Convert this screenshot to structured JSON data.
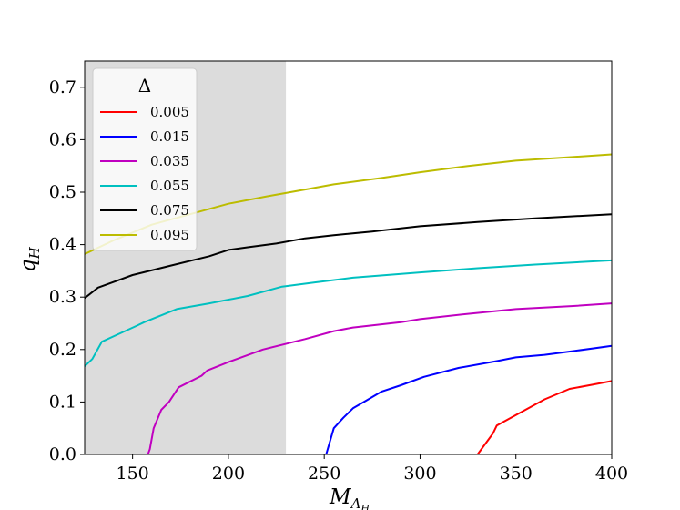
{
  "chart_data": {
    "type": "line",
    "title": "",
    "xlabel": "M",
    "xlabel_sub": "A",
    "xlabel_subsub": "H",
    "ylabel": "q",
    "ylabel_sub": "H",
    "xlim": [
      125,
      400
    ],
    "ylim": [
      0,
      0.75
    ],
    "xticks": [
      150,
      200,
      250,
      300,
      350,
      400
    ],
    "yticks": [
      0.0,
      0.1,
      0.2,
      0.3,
      0.4,
      0.5,
      0.6,
      0.7
    ],
    "xtick_labels": [
      "150",
      "200",
      "250",
      "300",
      "350",
      "400"
    ],
    "ytick_labels": [
      "0.0",
      "0.1",
      "0.2",
      "0.3",
      "0.4",
      "0.5",
      "0.6",
      "0.7"
    ],
    "shaded_region": {
      "x": [
        125,
        230
      ],
      "color": "#dcdcdc"
    },
    "grid": false,
    "legend": {
      "title": "Δ",
      "position": "top-left"
    },
    "series": [
      {
        "name": "0.005",
        "color": "#ff0000",
        "x": [
          330,
          338,
          340,
          350,
          365,
          378,
          390,
          400
        ],
        "y": [
          0.0,
          0.04,
          0.055,
          0.075,
          0.105,
          0.125,
          0.133,
          0.14
        ]
      },
      {
        "name": "0.015",
        "color": "#0000ff",
        "x": [
          251,
          255,
          260,
          265,
          272,
          280,
          290,
          302,
          320,
          340,
          350,
          365,
          380,
          400
        ],
        "y": [
          0.0,
          0.05,
          0.07,
          0.088,
          0.103,
          0.12,
          0.132,
          0.148,
          0.165,
          0.178,
          0.185,
          0.19,
          0.197,
          0.207
        ]
      },
      {
        "name": "0.035",
        "color": "#c000c0",
        "x": [
          158,
          159,
          161,
          165,
          169,
          174,
          186,
          189,
          200,
          218,
          240,
          255,
          265,
          290,
          300,
          325,
          350,
          380,
          400
        ],
        "y": [
          0.0,
          0.01,
          0.05,
          0.085,
          0.1,
          0.128,
          0.15,
          0.16,
          0.176,
          0.2,
          0.22,
          0.235,
          0.242,
          0.252,
          0.258,
          0.268,
          0.277,
          0.283,
          0.288
        ]
      },
      {
        "name": "0.055",
        "color": "#00c0c0",
        "x": [
          125,
          129,
          134,
          143,
          152,
          156,
          173,
          190,
          210,
          228,
          245,
          265,
          300,
          330,
          360,
          400
        ],
        "y": [
          0.168,
          0.182,
          0.215,
          0.23,
          0.245,
          0.252,
          0.277,
          0.288,
          0.302,
          0.32,
          0.328,
          0.337,
          0.347,
          0.355,
          0.362,
          0.37
        ]
      },
      {
        "name": "0.075",
        "color": "#000000",
        "x": [
          125,
          132,
          150,
          170,
          190,
          200,
          210,
          225,
          240,
          255,
          275,
          300,
          330,
          360,
          400
        ],
        "y": [
          0.298,
          0.318,
          0.342,
          0.36,
          0.378,
          0.39,
          0.395,
          0.402,
          0.412,
          0.418,
          0.425,
          0.435,
          0.443,
          0.45,
          0.458
        ]
      },
      {
        "name": "0.095",
        "color": "#bcbc00",
        "x": [
          125,
          140,
          160,
          180,
          200,
          220,
          240,
          255,
          280,
          300,
          325,
          350,
          375,
          400
        ],
        "y": [
          0.382,
          0.408,
          0.438,
          0.458,
          0.478,
          0.492,
          0.505,
          0.515,
          0.527,
          0.538,
          0.55,
          0.56,
          0.566,
          0.572
        ]
      }
    ]
  }
}
